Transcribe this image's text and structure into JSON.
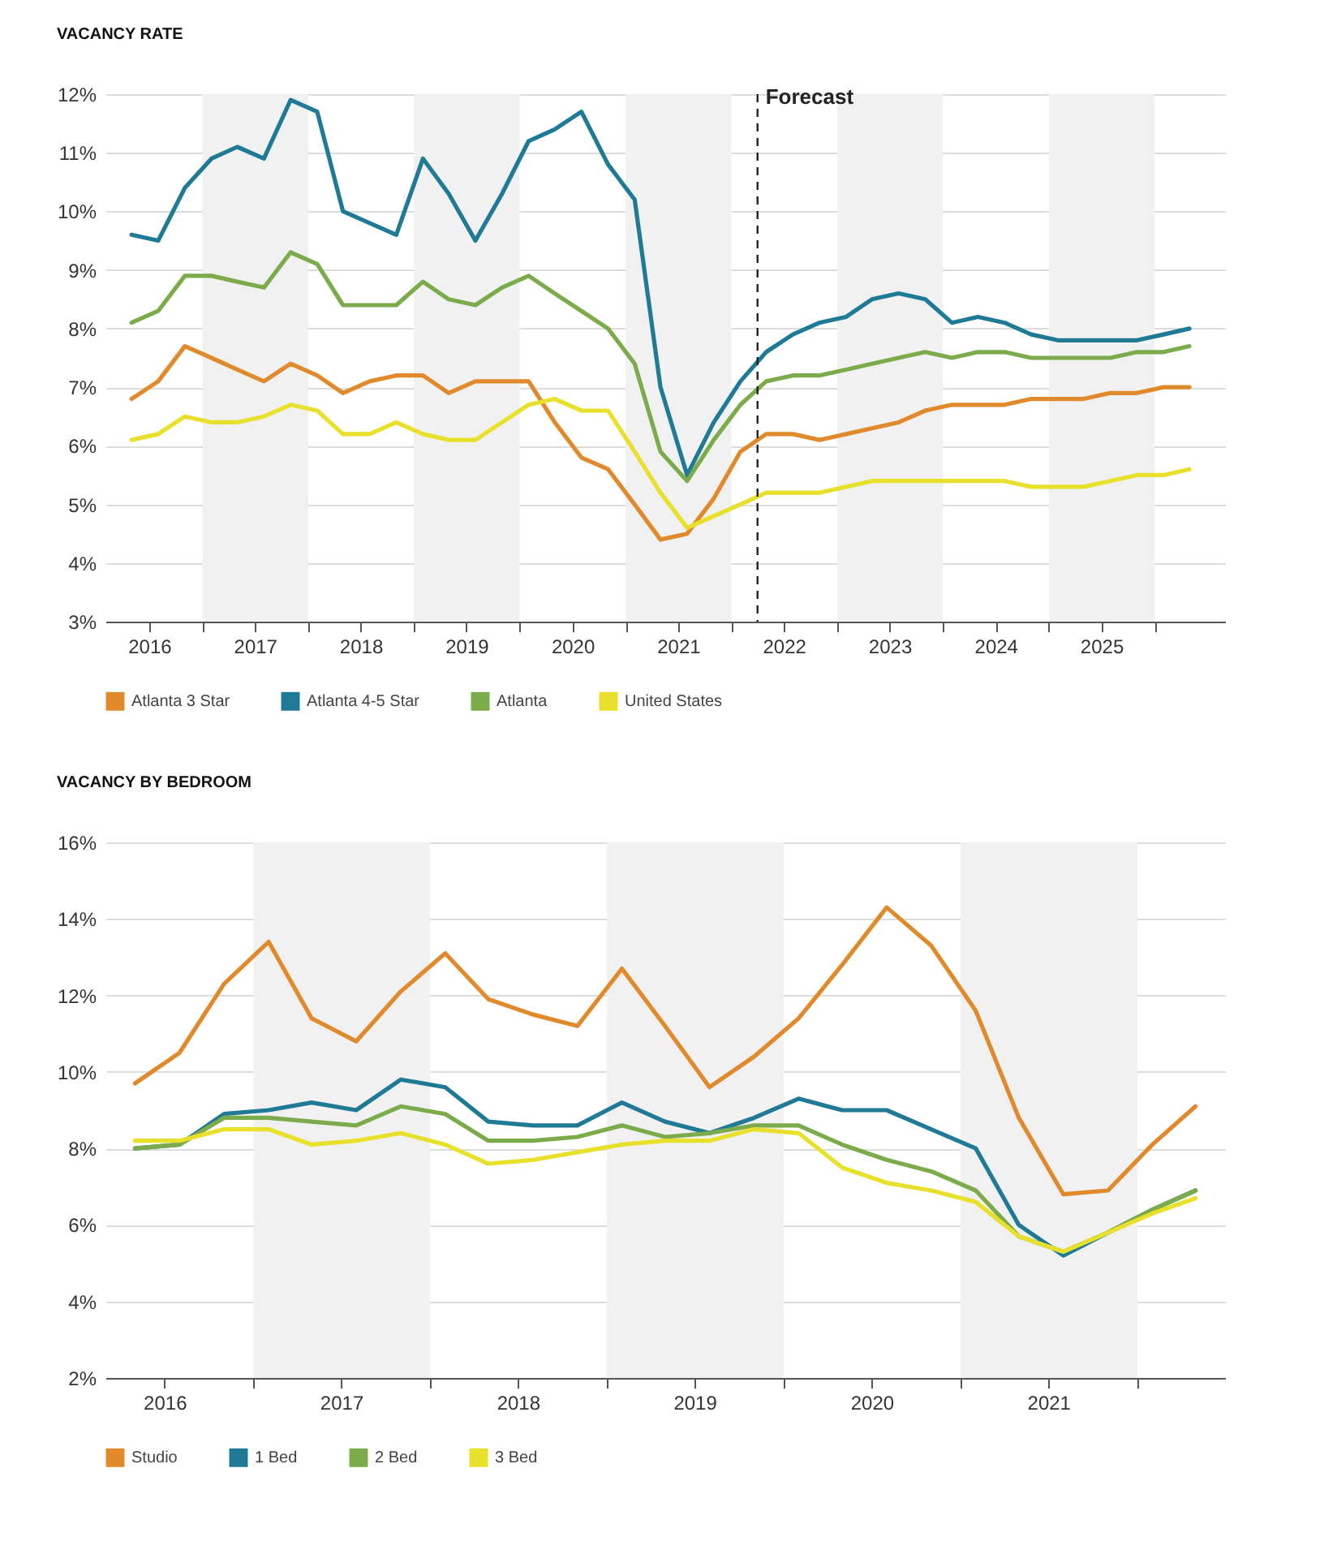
{
  "chart_data": [
    {
      "type": "line",
      "title": "VACANCY RATE",
      "x": [
        "2016-05",
        "2016-08",
        "2016-11",
        "2017-02",
        "2017-05",
        "2017-08",
        "2017-11",
        "2018-02",
        "2018-05",
        "2018-08",
        "2018-11",
        "2019-02",
        "2019-05",
        "2019-08",
        "2019-11",
        "2020-02",
        "2020-05",
        "2020-08",
        "2020-11",
        "2021-02",
        "2021-05",
        "2021-08",
        "2021-11",
        "2022-02",
        "2022-05",
        "2022-08",
        "2022-11",
        "2023-02",
        "2023-05",
        "2023-08",
        "2023-11",
        "2024-02",
        "2024-05",
        "2024-08",
        "2024-11",
        "2025-02",
        "2025-05",
        "2025-08",
        "2025-11",
        "2026-02",
        "2026-05"
      ],
      "series": [
        {
          "name": "Atlanta 3 Star",
          "color": "#e08a2c",
          "values": [
            6.8,
            7.1,
            7.7,
            7.5,
            7.3,
            7.1,
            7.4,
            7.2,
            6.9,
            7.1,
            7.2,
            7.2,
            6.9,
            7.1,
            7.1,
            7.1,
            6.4,
            5.8,
            5.6,
            5.0,
            4.4,
            4.5,
            5.1,
            5.9,
            6.2,
            6.2,
            6.1,
            6.2,
            6.3,
            6.4,
            6.6,
            6.7,
            6.7,
            6.7,
            6.8,
            6.8,
            6.8,
            6.9,
            6.9,
            7.0,
            7.0
          ]
        },
        {
          "name": "Atlanta 4-5 Star",
          "color": "#1f7a96",
          "values": [
            9.6,
            9.5,
            10.4,
            10.9,
            11.1,
            10.9,
            11.9,
            11.7,
            10.0,
            9.8,
            9.6,
            10.9,
            10.3,
            9.5,
            10.3,
            11.2,
            11.4,
            11.7,
            10.8,
            10.2,
            7.0,
            5.5,
            6.4,
            7.1,
            7.6,
            7.9,
            8.1,
            8.2,
            8.5,
            8.6,
            8.5,
            8.1,
            8.2,
            8.1,
            7.9,
            7.8,
            7.8,
            7.8,
            7.8,
            7.9,
            8.0
          ]
        },
        {
          "name": "Atlanta",
          "color": "#7bab4a",
          "values": [
            8.1,
            8.3,
            8.9,
            8.9,
            8.8,
            8.7,
            9.3,
            9.1,
            8.4,
            8.4,
            8.4,
            8.8,
            8.5,
            8.4,
            8.7,
            8.9,
            8.6,
            8.3,
            8.0,
            7.4,
            5.9,
            5.4,
            6.1,
            6.7,
            7.1,
            7.2,
            7.2,
            7.3,
            7.4,
            7.5,
            7.6,
            7.5,
            7.6,
            7.6,
            7.5,
            7.5,
            7.5,
            7.5,
            7.6,
            7.6,
            7.7
          ]
        },
        {
          "name": "United States",
          "color": "#e8e02a",
          "values": [
            6.1,
            6.2,
            6.5,
            6.4,
            6.4,
            6.5,
            6.7,
            6.6,
            6.2,
            6.2,
            6.4,
            6.2,
            6.1,
            6.1,
            6.4,
            6.7,
            6.8,
            6.6,
            6.6,
            5.9,
            5.2,
            4.6,
            4.8,
            5.0,
            5.2,
            5.2,
            5.2,
            5.3,
            5.4,
            5.4,
            5.4,
            5.4,
            5.4,
            5.4,
            5.3,
            5.3,
            5.3,
            5.4,
            5.5,
            5.5,
            5.6
          ]
        }
      ],
      "xlim": [
        "2016-02",
        "2026-09"
      ],
      "xticks": [
        {
          "value": "2016-07",
          "label": "2016"
        },
        {
          "value": "2017-01",
          "label": null
        },
        {
          "value": "2017-07",
          "label": "2017"
        },
        {
          "value": "2018-01",
          "label": null
        },
        {
          "value": "2018-07",
          "label": "2018"
        },
        {
          "value": "2019-01",
          "label": null
        },
        {
          "value": "2019-07",
          "label": "2019"
        },
        {
          "value": "2020-01",
          "label": null
        },
        {
          "value": "2020-07",
          "label": "2020"
        },
        {
          "value": "2021-01",
          "label": null
        },
        {
          "value": "2021-07",
          "label": "2021"
        },
        {
          "value": "2022-01",
          "label": null
        },
        {
          "value": "2022-07",
          "label": "2022"
        },
        {
          "value": "2023-01",
          "label": null
        },
        {
          "value": "2023-07",
          "label": "2023"
        },
        {
          "value": "2024-01",
          "label": null
        },
        {
          "value": "2024-07",
          "label": "2024"
        },
        {
          "value": "2025-01",
          "label": null
        },
        {
          "value": "2025-07",
          "label": "2025"
        },
        {
          "value": "2026-01",
          "label": null
        }
      ],
      "ylim": [
        3,
        12
      ],
      "yticks": [
        {
          "value": 3,
          "label": "3%"
        },
        {
          "value": 4,
          "label": "4%"
        },
        {
          "value": 5,
          "label": "5%"
        },
        {
          "value": 6,
          "label": "6%"
        },
        {
          "value": 7,
          "label": "7%"
        },
        {
          "value": 8,
          "label": "8%"
        },
        {
          "value": 9,
          "label": "9%"
        },
        {
          "value": 10,
          "label": "10%"
        },
        {
          "value": 11,
          "label": "11%"
        },
        {
          "value": 12,
          "label": "12%"
        }
      ],
      "ref_lines": [
        {
          "axis": "x",
          "value": "2022-04",
          "label": "Forecast",
          "line_style": "dashed",
          "color": "#222222"
        }
      ],
      "bands": [
        {
          "axis": "x",
          "from": "2017-01",
          "to": "2018-01",
          "color": "#f1f1f1"
        },
        {
          "axis": "x",
          "from": "2019-01",
          "to": "2020-01",
          "color": "#f1f1f1"
        },
        {
          "axis": "x",
          "from": "2021-01",
          "to": "2022-01",
          "color": "#f1f1f1"
        },
        {
          "axis": "x",
          "from": "2023-01",
          "to": "2024-01",
          "color": "#f1f1f1"
        },
        {
          "axis": "x",
          "from": "2025-01",
          "to": "2026-01",
          "color": "#f1f1f1"
        }
      ],
      "grid": "y",
      "legend": "bottom",
      "line_style": "solid"
    },
    {
      "type": "line",
      "title": "VACANCY BY BEDROOM",
      "x": [
        "2016-05",
        "2016-08",
        "2016-11",
        "2017-02",
        "2017-05",
        "2017-08",
        "2017-11",
        "2018-02",
        "2018-05",
        "2018-08",
        "2018-11",
        "2019-02",
        "2019-05",
        "2019-08",
        "2019-11",
        "2020-02",
        "2020-05",
        "2020-08",
        "2020-11",
        "2021-02",
        "2021-05",
        "2021-08",
        "2021-11",
        "2022-02",
        "2022-05"
      ],
      "series": [
        {
          "name": "Studio",
          "color": "#e08a2c",
          "values": [
            9.7,
            10.5,
            12.3,
            13.4,
            11.4,
            10.8,
            12.1,
            13.1,
            11.9,
            11.5,
            11.2,
            12.7,
            11.2,
            9.6,
            10.4,
            11.4,
            12.8,
            14.3,
            13.3,
            11.6,
            8.8,
            6.8,
            6.9,
            8.1,
            9.1
          ]
        },
        {
          "name": "1 Bed",
          "color": "#1f7a96",
          "values": [
            8.0,
            8.1,
            8.9,
            9.0,
            9.2,
            9.0,
            9.8,
            9.6,
            8.7,
            8.6,
            8.6,
            9.2,
            8.7,
            8.4,
            8.8,
            9.3,
            9.0,
            9.0,
            8.5,
            8.0,
            6.0,
            5.2,
            5.8,
            6.4,
            6.9
          ]
        },
        {
          "name": "2 Bed",
          "color": "#7bab4a",
          "values": [
            8.0,
            8.1,
            8.8,
            8.8,
            8.7,
            8.6,
            9.1,
            8.9,
            8.2,
            8.2,
            8.3,
            8.6,
            8.3,
            8.4,
            8.6,
            8.6,
            8.1,
            7.7,
            7.4,
            6.9,
            5.7,
            5.3,
            5.8,
            6.4,
            6.9
          ]
        },
        {
          "name": "3 Bed",
          "color": "#e8e02a",
          "values": [
            8.2,
            8.2,
            8.5,
            8.5,
            8.1,
            8.2,
            8.4,
            8.1,
            7.6,
            7.7,
            7.9,
            8.1,
            8.2,
            8.2,
            8.5,
            8.4,
            7.5,
            7.1,
            6.9,
            6.6,
            5.7,
            5.3,
            5.8,
            6.3,
            6.7
          ]
        }
      ],
      "xlim": [
        "2016-03",
        "2022-07"
      ],
      "xticks": [
        {
          "value": "2016-07",
          "label": "2016"
        },
        {
          "value": "2017-01",
          "label": null
        },
        {
          "value": "2017-07",
          "label": "2017"
        },
        {
          "value": "2018-01",
          "label": null
        },
        {
          "value": "2018-07",
          "label": "2018"
        },
        {
          "value": "2019-01",
          "label": null
        },
        {
          "value": "2019-07",
          "label": "2019"
        },
        {
          "value": "2020-01",
          "label": null
        },
        {
          "value": "2020-07",
          "label": "2020"
        },
        {
          "value": "2021-01",
          "label": null
        },
        {
          "value": "2021-07",
          "label": "2021"
        },
        {
          "value": "2022-01",
          "label": null
        }
      ],
      "ylim": [
        2,
        16
      ],
      "yticks": [
        {
          "value": 2,
          "label": "2%"
        },
        {
          "value": 4,
          "label": "4%"
        },
        {
          "value": 6,
          "label": "6%"
        },
        {
          "value": 8,
          "label": "8%"
        },
        {
          "value": 10,
          "label": "10%"
        },
        {
          "value": 12,
          "label": "12%"
        },
        {
          "value": 14,
          "label": "14%"
        },
        {
          "value": 16,
          "label": "16%"
        }
      ],
      "bands": [
        {
          "axis": "x",
          "from": "2017-01",
          "to": "2018-01",
          "color": "#f1f1f1"
        },
        {
          "axis": "x",
          "from": "2019-01",
          "to": "2020-01",
          "color": "#f1f1f1"
        },
        {
          "axis": "x",
          "from": "2021-01",
          "to": "2022-01",
          "color": "#f1f1f1"
        }
      ],
      "grid": "y",
      "legend": "bottom",
      "line_style": "solid"
    }
  ]
}
